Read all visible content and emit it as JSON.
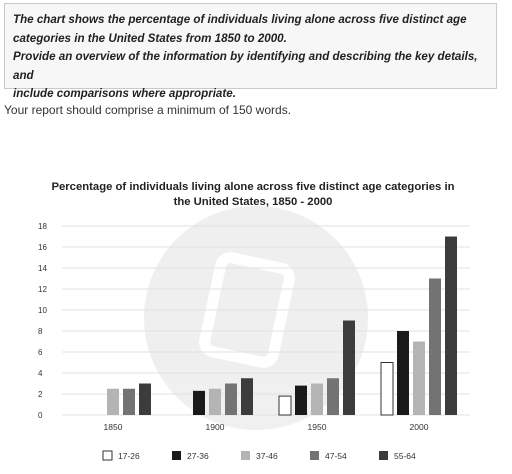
{
  "task": {
    "line1": "The chart shows the percentage of individuals living alone across five distinct age",
    "line2": "categories in the United States from 1850 to 2000.",
    "line3": "Provide an overview of the information by identifying and describing the key details, and",
    "line4": "include comparisons where appropriate."
  },
  "report_note": "Your report should comprise a minimum of 150 words.",
  "chart_data": {
    "type": "bar",
    "title_line1": "Percentage of individuals living alone across five distinct age categories in",
    "title_line2": "the United States, 1850 - 2000",
    "categories": [
      "1850",
      "1900",
      "1950",
      "2000"
    ],
    "series": [
      {
        "name": "17-26",
        "color": "#ffffff",
        "values": [
          0,
          0,
          1.8,
          5
        ]
      },
      {
        "name": "27-36",
        "color": "#1a1a1a",
        "values": [
          0,
          2.3,
          2.8,
          8
        ]
      },
      {
        "name": "37-46",
        "color": "#b4b4b4",
        "values": [
          2.5,
          2.5,
          3,
          7
        ]
      },
      {
        "name": "47-54",
        "color": "#737373",
        "values": [
          2.5,
          3,
          3.5,
          13
        ]
      },
      {
        "name": "55-64",
        "color": "#3c3c3c",
        "values": [
          3,
          3.5,
          9,
          17
        ]
      }
    ],
    "ylim": [
      0,
      18
    ],
    "yticks": [
      0,
      2,
      4,
      6,
      8,
      10,
      12,
      14,
      16,
      18
    ],
    "grid": true,
    "legend": "bottom"
  }
}
